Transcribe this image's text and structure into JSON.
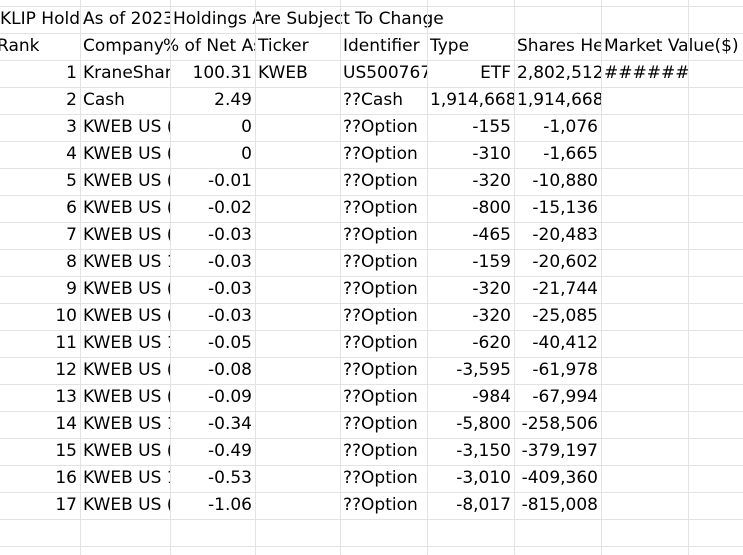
{
  "row1": {
    "a": "KLIP Holdings",
    "b": "As of 2023",
    "c": "Holdings Are Subject To Change"
  },
  "headers": {
    "rank": "Rank",
    "company": "Company Name",
    "pct": "% of Net Assets",
    "ticker": "Ticker",
    "identifier": "Identifier",
    "type": "Type",
    "shares": "Shares Held",
    "market_value": "Market Value($)"
  },
  "rows": [
    {
      "rank": "1",
      "company": "KraneShares",
      "pct": "100.31",
      "ticker": "KWEB",
      "identifier": "US500767",
      "type": "ETF",
      "shares": "2,802,512",
      "mv": "#######"
    },
    {
      "rank": "2",
      "company": "Cash",
      "pct": "2.49",
      "ticker": "",
      "identifier": "??Cash",
      "type": "1,914,668",
      "shares": "1,914,668",
      "mv": ""
    },
    {
      "rank": "3",
      "company": "KWEB US (",
      "pct": "0",
      "ticker": "",
      "identifier": "??Option",
      "type": "-155",
      "shares": "-1,076",
      "mv": ""
    },
    {
      "rank": "4",
      "company": "KWEB US (",
      "pct": "0",
      "ticker": "",
      "identifier": "??Option",
      "type": "-310",
      "shares": "-1,665",
      "mv": ""
    },
    {
      "rank": "5",
      "company": "KWEB US (",
      "pct": "-0.01",
      "ticker": "",
      "identifier": "??Option",
      "type": "-320",
      "shares": "-10,880",
      "mv": ""
    },
    {
      "rank": "6",
      "company": "KWEB US (",
      "pct": "-0.02",
      "ticker": "",
      "identifier": "??Option",
      "type": "-800",
      "shares": "-15,136",
      "mv": ""
    },
    {
      "rank": "7",
      "company": "KWEB US (",
      "pct": "-0.03",
      "ticker": "",
      "identifier": "??Option",
      "type": "-465",
      "shares": "-20,483",
      "mv": ""
    },
    {
      "rank": "8",
      "company": "KWEB US 1",
      "pct": "-0.03",
      "ticker": "",
      "identifier": "??Option",
      "type": "-159",
      "shares": "-20,602",
      "mv": ""
    },
    {
      "rank": "9",
      "company": "KWEB US (",
      "pct": "-0.03",
      "ticker": "",
      "identifier": "??Option",
      "type": "-320",
      "shares": "-21,744",
      "mv": ""
    },
    {
      "rank": "10",
      "company": "KWEB US (",
      "pct": "-0.03",
      "ticker": "",
      "identifier": "??Option",
      "type": "-320",
      "shares": "-25,085",
      "mv": ""
    },
    {
      "rank": "11",
      "company": "KWEB US 1",
      "pct": "-0.05",
      "ticker": "",
      "identifier": "??Option",
      "type": "-620",
      "shares": "-40,412",
      "mv": ""
    },
    {
      "rank": "12",
      "company": "KWEB US (",
      "pct": "-0.08",
      "ticker": "",
      "identifier": "??Option",
      "type": "-3,595",
      "shares": "-61,978",
      "mv": ""
    },
    {
      "rank": "13",
      "company": "KWEB US (",
      "pct": "-0.09",
      "ticker": "",
      "identifier": "??Option",
      "type": "-984",
      "shares": "-67,994",
      "mv": ""
    },
    {
      "rank": "14",
      "company": "KWEB US 1",
      "pct": "-0.34",
      "ticker": "",
      "identifier": "??Option",
      "type": "-5,800",
      "shares": "-258,506",
      "mv": ""
    },
    {
      "rank": "15",
      "company": "KWEB US (",
      "pct": "-0.49",
      "ticker": "",
      "identifier": "??Option",
      "type": "-3,150",
      "shares": "-379,197",
      "mv": ""
    },
    {
      "rank": "16",
      "company": "KWEB US 1",
      "pct": "-0.53",
      "ticker": "",
      "identifier": "??Option",
      "type": "-3,010",
      "shares": "-409,360",
      "mv": ""
    },
    {
      "rank": "17",
      "company": "KWEB US (",
      "pct": "-1.06",
      "ticker": "",
      "identifier": "??Option",
      "type": "-8,017",
      "shares": "-815,008",
      "mv": ""
    }
  ],
  "colors": {
    "gridline": "#e3e3e3",
    "text": "#000000",
    "background": "#ffffff"
  }
}
